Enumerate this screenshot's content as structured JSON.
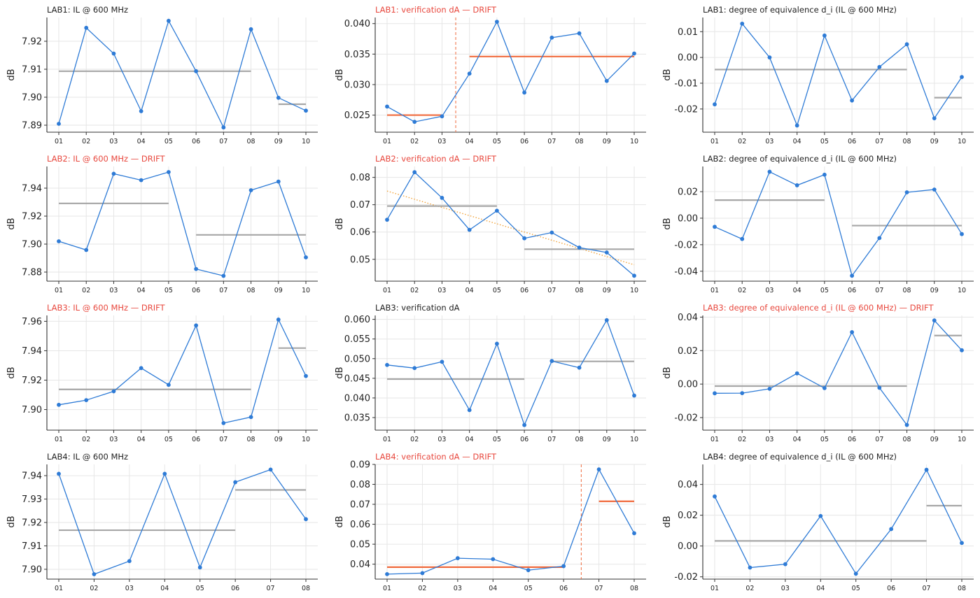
{
  "figure": {
    "drift_color": "#e8483e",
    "normal_title_color": "#222222",
    "series_color": "#2e7bd6",
    "segment_color": "#a6a6a6",
    "drift_segment_color": "#f06a3c",
    "trend_color": "#f2a33a",
    "grid_color": "#e6e6e6"
  },
  "chart_data": [
    {
      "type": "line",
      "title": "LAB1: IL @ 600 MHz",
      "drift": false,
      "ylabel": "dB",
      "x": [
        "01",
        "02",
        "03",
        "04",
        "05",
        "06",
        "07",
        "08",
        "09",
        "10"
      ],
      "values": [
        7.8905,
        7.9248,
        7.9156,
        7.895,
        7.9273,
        7.9093,
        7.8892,
        7.9243,
        7.8998,
        7.8952
      ],
      "ylim": [
        7.8875,
        7.9285
      ],
      "yticks": [
        7.89,
        7.9,
        7.91,
        7.92
      ],
      "decimals": 2,
      "segments": [
        {
          "from": 0,
          "to": 7,
          "y": 7.9093
        },
        {
          "from": 8,
          "to": 9,
          "y": 7.8975
        }
      ],
      "changepoint": null,
      "trend": null
    },
    {
      "type": "line",
      "title": "LAB1: verification dA  — DRIFT",
      "drift": true,
      "ylabel": "dB",
      "x": [
        "01",
        "02",
        "03",
        "04",
        "05",
        "06",
        "07",
        "08",
        "09",
        "10"
      ],
      "values": [
        0.0264,
        0.0239,
        0.0248,
        0.0318,
        0.0403,
        0.0287,
        0.0377,
        0.0384,
        0.0306,
        0.0351
      ],
      "ylim": [
        0.0222,
        0.041
      ],
      "yticks": [
        0.025,
        0.03,
        0.035,
        0.04
      ],
      "decimals": 3,
      "segments": [
        {
          "from": 0,
          "to": 2,
          "y": 0.025
        },
        {
          "from": 3,
          "to": 9,
          "y": 0.0346
        }
      ],
      "changepoint": 2.5,
      "trend": null
    },
    {
      "type": "line",
      "title": "LAB1: degree of equivalence d_i (IL @ 600 MHz)",
      "drift": false,
      "ylabel": "dB",
      "x": [
        "01",
        "02",
        "03",
        "04",
        "05",
        "06",
        "07",
        "08",
        "09",
        "10"
      ],
      "values": [
        -0.0182,
        0.0131,
        0.0,
        -0.0264,
        0.0085,
        -0.0167,
        -0.0037,
        0.0051,
        -0.0236,
        -0.0076
      ],
      "ylim": [
        -0.029,
        0.0155
      ],
      "yticks": [
        -0.02,
        -0.01,
        0.0,
        0.01
      ],
      "decimals": 2,
      "segments": [
        {
          "from": 0,
          "to": 7,
          "y": -0.0047
        },
        {
          "from": 8,
          "to": 9,
          "y": -0.0156
        }
      ],
      "changepoint": null,
      "trend": null
    },
    {
      "type": "line",
      "title": "LAB2: IL @ 600 MHz  — DRIFT",
      "drift": true,
      "ylabel": "dB",
      "x": [
        "01",
        "02",
        "03",
        "04",
        "05",
        "06",
        "07",
        "08",
        "09",
        "10"
      ],
      "values": [
        7.902,
        7.8958,
        7.9503,
        7.9457,
        7.9515,
        7.8822,
        7.8773,
        7.9385,
        7.9447,
        7.8905
      ],
      "ylim": [
        7.8735,
        7.9555
      ],
      "yticks": [
        7.88,
        7.9,
        7.92,
        7.94
      ],
      "decimals": 2,
      "segments": [
        {
          "from": 0,
          "to": 4,
          "y": 7.9291
        },
        {
          "from": 5,
          "to": 9,
          "y": 7.9066
        }
      ],
      "changepoint": null,
      "trend": null
    },
    {
      "type": "line",
      "title": "LAB2: verification dA  — DRIFT",
      "drift": true,
      "ylabel": "dB",
      "x": [
        "01",
        "02",
        "03",
        "04",
        "05",
        "06",
        "07",
        "08",
        "09",
        "10"
      ],
      "values": [
        0.0645,
        0.0819,
        0.0725,
        0.0608,
        0.0678,
        0.0577,
        0.0598,
        0.0543,
        0.0525,
        0.044
      ],
      "ylim": [
        0.042,
        0.084
      ],
      "yticks": [
        0.05,
        0.06,
        0.07,
        0.08
      ],
      "decimals": 2,
      "segments": [
        {
          "from": 0,
          "to": 4,
          "y": 0.0695
        },
        {
          "from": 5,
          "to": 9,
          "y": 0.0537
        }
      ],
      "changepoint": null,
      "trend": {
        "y0": 0.075,
        "y1": 0.048
      }
    },
    {
      "type": "line",
      "title": "LAB2: degree of equivalence d_i (IL @ 600 MHz)",
      "drift": false,
      "ylabel": "dB",
      "x": [
        "01",
        "02",
        "03",
        "04",
        "05",
        "06",
        "07",
        "08",
        "09",
        "10"
      ],
      "values": [
        -0.0065,
        -0.0157,
        0.035,
        0.0248,
        0.0328,
        -0.0434,
        -0.015,
        0.0195,
        0.0216,
        -0.012
      ],
      "ylim": [
        -0.0475,
        0.039
      ],
      "yticks": [
        -0.04,
        -0.02,
        0.0,
        0.02
      ],
      "decimals": 2,
      "segments": [
        {
          "from": 0,
          "to": 4,
          "y": 0.0136
        },
        {
          "from": 5,
          "to": 9,
          "y": -0.0056
        }
      ],
      "changepoint": null,
      "trend": null
    },
    {
      "type": "line",
      "title": "LAB3: IL @ 600 MHz  — DRIFT",
      "drift": true,
      "ylabel": "dB",
      "x": [
        "01",
        "02",
        "03",
        "04",
        "05",
        "06",
        "07",
        "08",
        "09",
        "10"
      ],
      "values": [
        7.9032,
        7.9064,
        7.9124,
        7.9282,
        7.9168,
        7.9572,
        7.8908,
        7.8949,
        7.9612,
        7.9228
      ],
      "ylim": [
        7.886,
        7.964
      ],
      "yticks": [
        7.9,
        7.92,
        7.94,
        7.96
      ],
      "decimals": 2,
      "segments": [
        {
          "from": 0,
          "to": 7,
          "y": 7.9137
        },
        {
          "from": 8,
          "to": 9,
          "y": 7.9418
        }
      ],
      "changepoint": null,
      "trend": null
    },
    {
      "type": "line",
      "title": "LAB3: verification dA",
      "drift": false,
      "ylabel": "dB",
      "x": [
        "01",
        "02",
        "03",
        "04",
        "05",
        "06",
        "07",
        "08",
        "09",
        "10"
      ],
      "values": [
        0.0484,
        0.0476,
        0.0492,
        0.0369,
        0.0538,
        0.0331,
        0.0494,
        0.0477,
        0.0598,
        0.0406
      ],
      "ylim": [
        0.0318,
        0.061
      ],
      "yticks": [
        0.035,
        0.04,
        0.045,
        0.05,
        0.055,
        0.06
      ],
      "decimals": 3,
      "segments": [
        {
          "from": 0,
          "to": 5,
          "y": 0.0448
        },
        {
          "from": 6,
          "to": 9,
          "y": 0.0493
        }
      ],
      "changepoint": null,
      "trend": null
    },
    {
      "type": "line",
      "title": "LAB3: degree of equivalence d_i (IL @ 600 MHz)  — DRIFT",
      "drift": true,
      "ylabel": "dB",
      "x": [
        "01",
        "02",
        "03",
        "04",
        "05",
        "06",
        "07",
        "08",
        "09",
        "10"
      ],
      "values": [
        -0.0055,
        -0.0054,
        -0.0028,
        0.0064,
        -0.0024,
        0.031,
        -0.0022,
        -0.0244,
        0.038,
        0.0202
      ],
      "ylim": [
        -0.0275,
        0.041
      ],
      "yticks": [
        -0.02,
        0.0,
        0.02,
        0.04
      ],
      "decimals": 2,
      "segments": [
        {
          "from": 0,
          "to": 7,
          "y": -0.0012
        },
        {
          "from": 8,
          "to": 9,
          "y": 0.029
        }
      ],
      "changepoint": null,
      "trend": null
    },
    {
      "type": "line",
      "title": "LAB4: IL @ 600 MHz",
      "drift": false,
      "ylabel": "dB",
      "x": [
        "01",
        "02",
        "03",
        "04",
        "05",
        "06",
        "07",
        "08"
      ],
      "values": [
        7.9408,
        7.8979,
        7.9035,
        7.9408,
        7.9008,
        7.9372,
        7.9426,
        7.9214
      ],
      "ylim": [
        7.8958,
        7.9448
      ],
      "yticks": [
        7.9,
        7.91,
        7.92,
        7.93,
        7.94
      ],
      "decimals": 2,
      "segments": [
        {
          "from": 0,
          "to": 5,
          "y": 7.9167
        },
        {
          "from": 5,
          "to": 7,
          "y": 7.9339
        }
      ],
      "changepoint": null,
      "trend": null
    },
    {
      "type": "line",
      "title": "LAB4: verification dA  — DRIFT",
      "drift": true,
      "ylabel": "dB",
      "x": [
        "01",
        "02",
        "03",
        "04",
        "05",
        "06",
        "07",
        "08"
      ],
      "values": [
        0.035,
        0.0355,
        0.043,
        0.0425,
        0.037,
        0.039,
        0.0875,
        0.0555
      ],
      "ylim": [
        0.0325,
        0.09
      ],
      "yticks": [
        0.04,
        0.05,
        0.06,
        0.07,
        0.08,
        0.09
      ],
      "decimals": 2,
      "segments": [
        {
          "from": 0,
          "to": 5,
          "y": 0.0385
        },
        {
          "from": 6,
          "to": 7,
          "y": 0.0715
        }
      ],
      "changepoint": 5.5,
      "trend": null
    },
    {
      "type": "line",
      "title": "LAB4: degree of equivalence d_i (IL @ 600 MHz)",
      "drift": false,
      "ylabel": "dB",
      "x": [
        "01",
        "02",
        "03",
        "04",
        "05",
        "06",
        "07",
        "08"
      ],
      "values": [
        0.0322,
        -0.014,
        -0.0118,
        0.0195,
        -0.018,
        0.011,
        0.0495,
        0.002
      ],
      "ylim": [
        -0.0215,
        0.053
      ],
      "yticks": [
        -0.02,
        0.0,
        0.02,
        0.04
      ],
      "decimals": 2,
      "segments": [
        {
          "from": 0,
          "to": 6,
          "y": 0.0033
        },
        {
          "from": 6,
          "to": 7,
          "y": 0.0262
        }
      ],
      "changepoint": null,
      "trend": null
    }
  ]
}
